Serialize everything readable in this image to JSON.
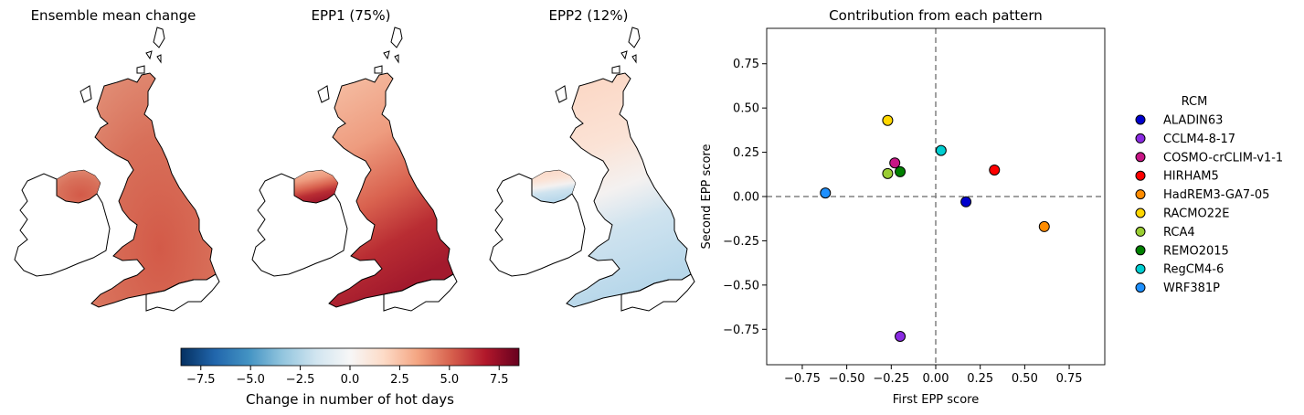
{
  "maps": [
    {
      "title": "Ensemble mean change",
      "mode": "mean"
    },
    {
      "title": "EPP1 (75%)",
      "mode": "epp1"
    },
    {
      "title": "EPP2 (12%)",
      "mode": "epp2"
    }
  ],
  "colorbar": {
    "label": "Change in number of hot days",
    "vmin": -8.5,
    "vmax": 8.5,
    "ticks": [
      -7.5,
      -5.0,
      -2.5,
      0.0,
      2.5,
      5.0,
      7.5
    ],
    "tick_labels": [
      "−7.5",
      "−5.0",
      "−2.5",
      "0.0",
      "2.5",
      "5.0",
      "7.5"
    ]
  },
  "chart_data": {
    "type": "scatter",
    "title": "Contribution from each pattern",
    "xlabel": "First EPP score",
    "ylabel": "Second EPP score",
    "xlim": [
      -0.95,
      0.95
    ],
    "ylim": [
      -0.95,
      0.95
    ],
    "xticks": [
      -0.75,
      -0.5,
      -0.25,
      0.0,
      0.25,
      0.5,
      0.75
    ],
    "yticks": [
      -0.75,
      -0.5,
      -0.25,
      0.0,
      0.25,
      0.5,
      0.75
    ],
    "xtick_labels": [
      "−0.75",
      "−0.50",
      "−0.25",
      "0.00",
      "0.25",
      "0.50",
      "0.75"
    ],
    "ytick_labels": [
      "−0.75",
      "−0.50",
      "−0.25",
      "0.00",
      "0.25",
      "0.50",
      "0.75"
    ],
    "reference_lines": {
      "x": 0,
      "y": 0,
      "style": "dashed",
      "color": "#808080"
    },
    "legend": {
      "title": "RCM",
      "placement": "right-outside"
    },
    "series": [
      {
        "name": "ALADIN63",
        "color": "#0000cd",
        "x": 0.17,
        "y": -0.03
      },
      {
        "name": "CCLM4-8-17",
        "color": "#8a2be2",
        "x": -0.2,
        "y": -0.79
      },
      {
        "name": "COSMO-crCLIM-v1-1",
        "color": "#c71585",
        "x": -0.23,
        "y": 0.19
      },
      {
        "name": "HIRHAM5",
        "color": "#ff0000",
        "x": 0.33,
        "y": 0.15
      },
      {
        "name": "HadREM3-GA7-05",
        "color": "#ff8c00",
        "x": 0.61,
        "y": -0.17
      },
      {
        "name": "RACMO22E",
        "color": "#ffd700",
        "x": -0.27,
        "y": 0.43
      },
      {
        "name": "RCA4",
        "color": "#9acd32",
        "x": -0.27,
        "y": 0.13
      },
      {
        "name": "REMO2015",
        "color": "#008000",
        "x": -0.2,
        "y": 0.14
      },
      {
        "name": "RegCM4-6",
        "color": "#00ced1",
        "x": 0.03,
        "y": 0.26
      },
      {
        "name": "WRF381P",
        "color": "#1e90ff",
        "x": -0.62,
        "y": 0.02
      }
    ]
  }
}
